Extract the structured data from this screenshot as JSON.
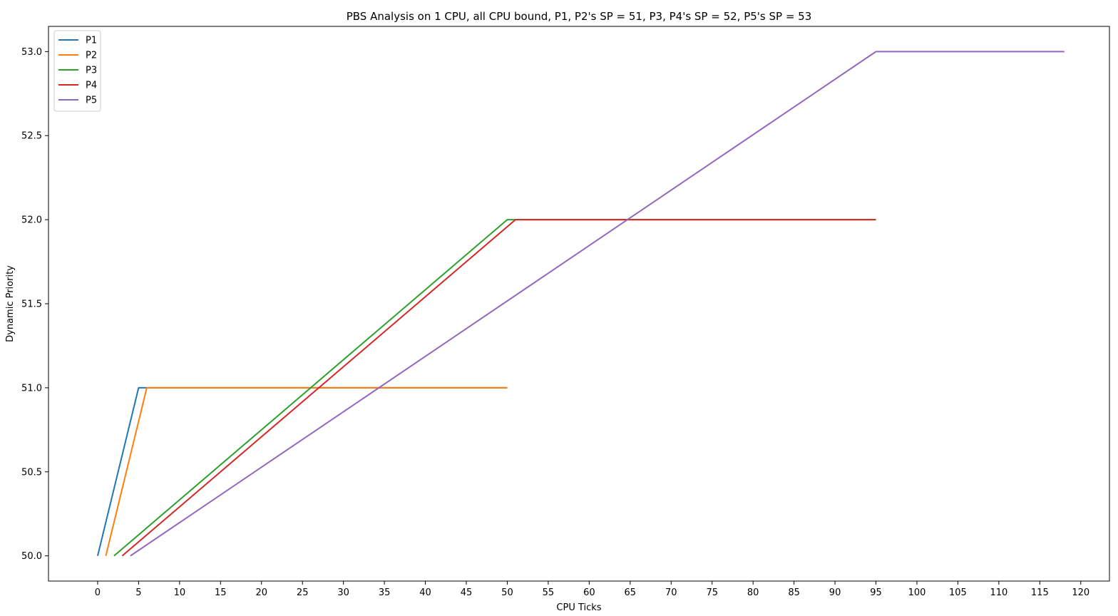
{
  "chart_data": {
    "type": "line",
    "title": "PBS Analysis on 1 CPU, all CPU bound, P1, P2's SP = 51, P3, P4's SP = 52, P5's SP = 53",
    "xlabel": "CPU Ticks",
    "ylabel": "Dynamic Priority",
    "xlim": [
      -6,
      123.5
    ],
    "ylim": [
      49.85,
      53.15
    ],
    "xticks": [
      0,
      5,
      10,
      15,
      20,
      25,
      30,
      35,
      40,
      45,
      50,
      55,
      60,
      65,
      70,
      75,
      80,
      85,
      90,
      95,
      100,
      105,
      110,
      115,
      120
    ],
    "yticks": [
      50.0,
      50.5,
      51.0,
      51.5,
      52.0,
      52.5,
      53.0
    ],
    "ytick_labels": [
      "50.0",
      "50.5",
      "51.0",
      "51.5",
      "52.0",
      "52.5",
      "53.0"
    ],
    "grid": false,
    "legend_position": "top-left",
    "series": [
      {
        "name": "P1",
        "color": "#1f77b4",
        "x": [
          0,
          5,
          50
        ],
        "y": [
          50,
          51,
          51
        ]
      },
      {
        "name": "P2",
        "color": "#ff7f0e",
        "x": [
          1,
          6,
          50
        ],
        "y": [
          50,
          51,
          51
        ]
      },
      {
        "name": "P3",
        "color": "#2ca02c",
        "x": [
          2,
          50,
          95
        ],
        "y": [
          50,
          52,
          52
        ]
      },
      {
        "name": "P4",
        "color": "#d62728",
        "x": [
          3,
          51,
          95
        ],
        "y": [
          50,
          52,
          52
        ]
      },
      {
        "name": "P5",
        "color": "#9467bd",
        "x": [
          4,
          95,
          118
        ],
        "y": [
          50,
          53,
          53
        ]
      }
    ]
  }
}
